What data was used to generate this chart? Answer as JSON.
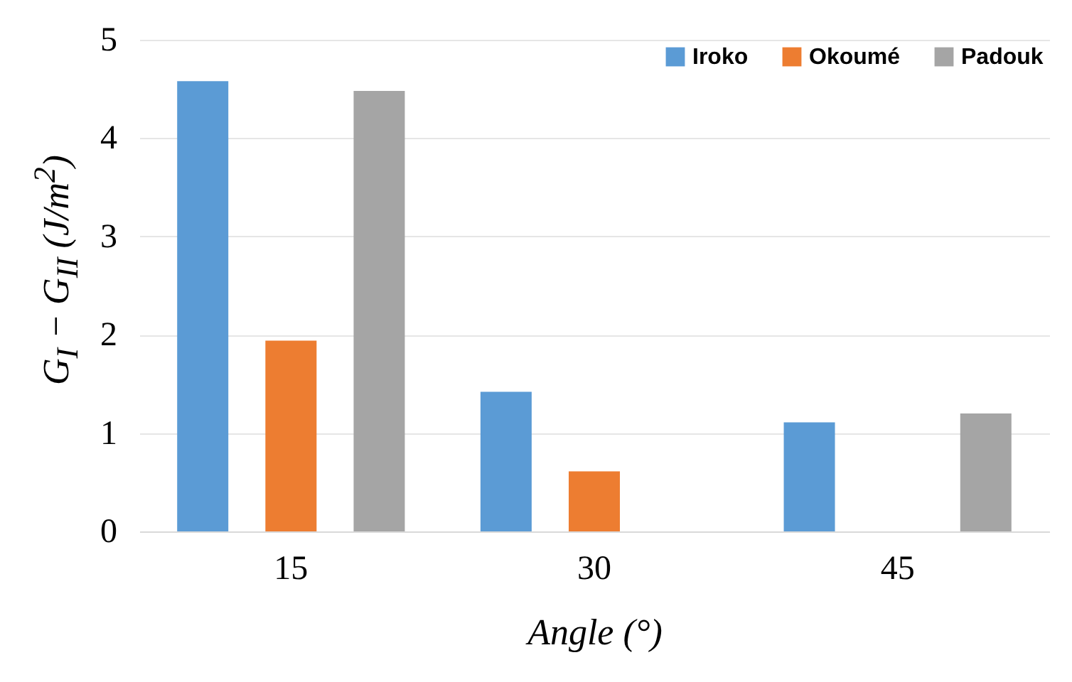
{
  "chart_data": {
    "type": "bar",
    "xlabel": "Angle (°)",
    "ylabel": "G$_{I}$ − G$_{II}$ (J/m$^{2}$)",
    "categories": [
      "15",
      "30",
      "45"
    ],
    "series": [
      {
        "name": "Iroko",
        "color": "#5b9bd5",
        "values": [
          4.58,
          1.42,
          1.11
        ]
      },
      {
        "name": "Okoumé",
        "color": "#ed7d31",
        "values": [
          1.94,
          0.61,
          null
        ]
      },
      {
        "name": "Padouk",
        "color": "#a5a5a5",
        "values": [
          4.48,
          null,
          1.2
        ]
      }
    ],
    "ylim": [
      0,
      5
    ],
    "yticks": [
      0,
      1,
      2,
      3,
      4,
      5
    ],
    "grid": "y",
    "legend": "top right"
  }
}
